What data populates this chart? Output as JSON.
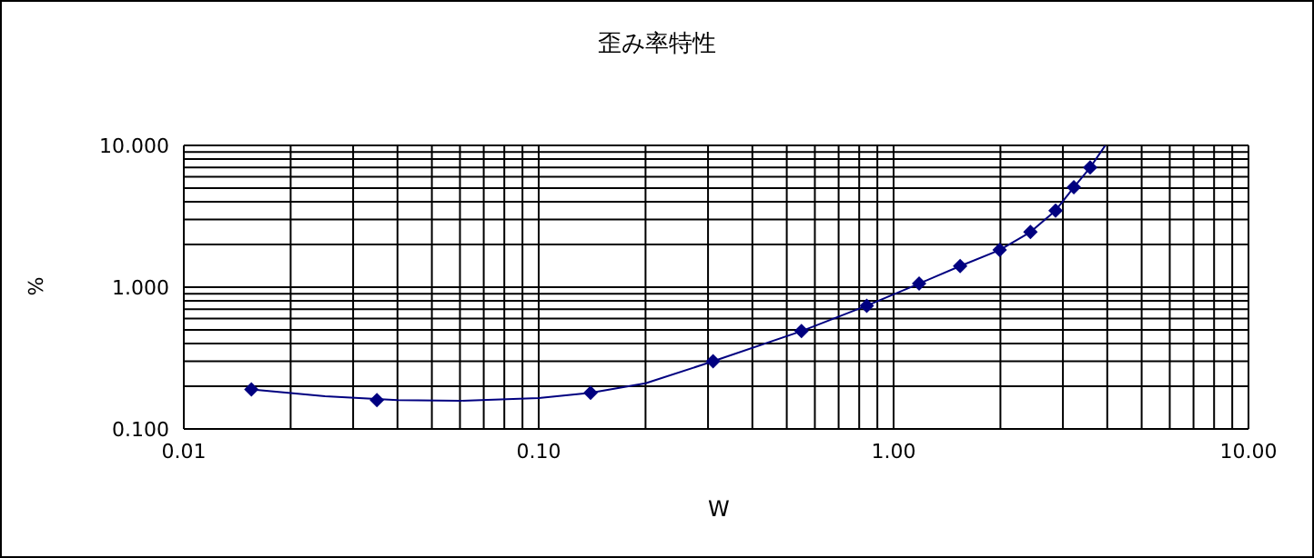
{
  "chart_data": {
    "type": "scatter",
    "title": "歪み率特性",
    "xlabel": "W",
    "ylabel": "%",
    "log": "xy",
    "grid": true,
    "legend": false,
    "xlim": [
      0.01,
      10
    ],
    "ylim": [
      0.1,
      10
    ],
    "xticks": [
      {
        "value": 0.01,
        "label": "0.01"
      },
      {
        "value": 0.02,
        "label": null
      },
      {
        "value": 0.03,
        "label": null
      },
      {
        "value": 0.04,
        "label": null
      },
      {
        "value": 0.05,
        "label": null
      },
      {
        "value": 0.06,
        "label": null
      },
      {
        "value": 0.07,
        "label": null
      },
      {
        "value": 0.08,
        "label": null
      },
      {
        "value": 0.09,
        "label": null
      },
      {
        "value": 0.1,
        "label": "0.10"
      },
      {
        "value": 0.2,
        "label": null
      },
      {
        "value": 0.3,
        "label": null
      },
      {
        "value": 0.4,
        "label": null
      },
      {
        "value": 0.5,
        "label": null
      },
      {
        "value": 0.6,
        "label": null
      },
      {
        "value": 0.7,
        "label": null
      },
      {
        "value": 0.8,
        "label": null
      },
      {
        "value": 0.9,
        "label": null
      },
      {
        "value": 1,
        "label": "1.00"
      },
      {
        "value": 2,
        "label": null
      },
      {
        "value": 3,
        "label": null
      },
      {
        "value": 4,
        "label": null
      },
      {
        "value": 5,
        "label": null
      },
      {
        "value": 6,
        "label": null
      },
      {
        "value": 7,
        "label": null
      },
      {
        "value": 8,
        "label": null
      },
      {
        "value": 9,
        "label": null
      },
      {
        "value": 10,
        "label": "10.00"
      }
    ],
    "yticks": [
      {
        "value": 0.1,
        "label": "0.100"
      },
      {
        "value": 0.2,
        "label": null
      },
      {
        "value": 0.3,
        "label": null
      },
      {
        "value": 0.4,
        "label": null
      },
      {
        "value": 0.5,
        "label": null
      },
      {
        "value": 0.6,
        "label": null
      },
      {
        "value": 0.7,
        "label": null
      },
      {
        "value": 0.8,
        "label": null
      },
      {
        "value": 0.9,
        "label": null
      },
      {
        "value": 1,
        "label": "1.000"
      },
      {
        "value": 2,
        "label": null
      },
      {
        "value": 3,
        "label": null
      },
      {
        "value": 4,
        "label": null
      },
      {
        "value": 5,
        "label": null
      },
      {
        "value": 6,
        "label": null
      },
      {
        "value": 7,
        "label": null
      },
      {
        "value": 8,
        "label": null
      },
      {
        "value": 9,
        "label": null
      },
      {
        "value": 10,
        "label": "10.000"
      }
    ],
    "series": [
      {
        "marker": "diamond",
        "color": "#000080",
        "x": [
          0.0155,
          0.035,
          0.14,
          0.31,
          0.55,
          0.84,
          1.18,
          1.54,
          1.99,
          2.43,
          2.86,
          3.22,
          3.58
        ],
        "values": [
          0.19,
          0.16,
          0.18,
          0.3,
          0.49,
          0.74,
          1.06,
          1.41,
          1.83,
          2.45,
          3.47,
          5.07,
          6.98
        ]
      },
      {
        "type": "line",
        "marker": "none",
        "line_style": "solid",
        "color": "#000080",
        "x": [
          0.0155,
          0.025,
          0.04,
          0.06,
          0.1,
          0.14,
          0.2,
          0.31,
          0.55,
          0.84,
          1.18,
          1.54,
          1.99,
          2.43,
          2.86,
          3.22,
          3.58,
          3.95
        ],
        "values": [
          0.19,
          0.17,
          0.16,
          0.158,
          0.165,
          0.18,
          0.21,
          0.3,
          0.49,
          0.74,
          1.06,
          1.41,
          1.83,
          2.45,
          3.47,
          5.07,
          6.98,
          10
        ]
      }
    ]
  }
}
